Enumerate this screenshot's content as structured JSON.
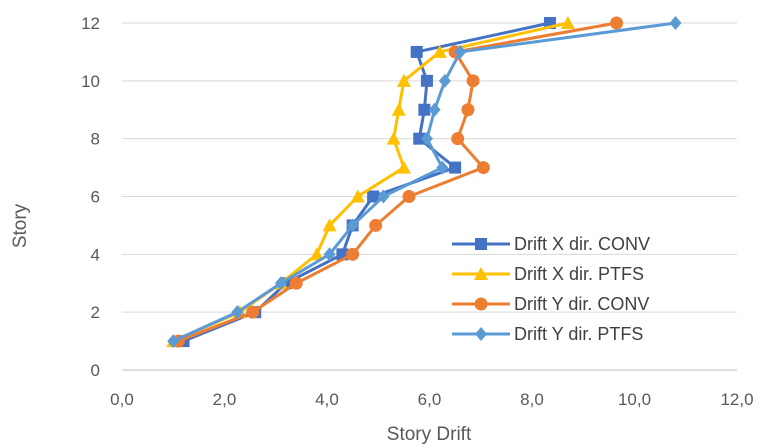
{
  "chart_data": {
    "type": "line",
    "xlabel": "Story Drift",
    "ylabel": "Story",
    "xlim": [
      0,
      12
    ],
    "ylim": [
      0,
      12
    ],
    "x_ticks": [
      0,
      2,
      4,
      6,
      8,
      10,
      12
    ],
    "x_tick_labels": [
      "0,0",
      "2,0",
      "4,0",
      "6,0",
      "8,0",
      "10,0",
      "12,0"
    ],
    "y_ticks": [
      0,
      2,
      4,
      6,
      8,
      10,
      12
    ],
    "y_tick_labels": [
      "0",
      "2",
      "4",
      "6",
      "8",
      "10",
      "12"
    ],
    "grid": "horizontal",
    "legend_position": "bottom-right",
    "series": [
      {
        "name": "Drift X dir. CONV",
        "color": "#4472C4",
        "marker": "square",
        "points": [
          [
            1.2,
            1
          ],
          [
            2.6,
            2
          ],
          [
            3.2,
            3
          ],
          [
            4.3,
            4
          ],
          [
            4.5,
            5
          ],
          [
            4.9,
            6
          ],
          [
            6.5,
            7
          ],
          [
            5.8,
            8
          ],
          [
            5.9,
            9
          ],
          [
            5.95,
            10
          ],
          [
            5.75,
            11
          ],
          [
            8.35,
            12
          ]
        ]
      },
      {
        "name": "Drift X dir. PTFS",
        "color": "#FFC000",
        "marker": "triangle",
        "points": [
          [
            1.0,
            1
          ],
          [
            2.3,
            2
          ],
          [
            3.1,
            3
          ],
          [
            3.8,
            4
          ],
          [
            4.05,
            5
          ],
          [
            4.6,
            6
          ],
          [
            5.5,
            7
          ],
          [
            5.3,
            8
          ],
          [
            5.4,
            9
          ],
          [
            5.5,
            10
          ],
          [
            6.2,
            11
          ],
          [
            8.7,
            12
          ]
        ]
      },
      {
        "name": "Drift Y dir. CONV",
        "color": "#ED7D31",
        "marker": "circle",
        "points": [
          [
            1.1,
            1
          ],
          [
            2.55,
            2
          ],
          [
            3.4,
            3
          ],
          [
            4.5,
            4
          ],
          [
            4.95,
            5
          ],
          [
            5.6,
            6
          ],
          [
            7.05,
            7
          ],
          [
            6.55,
            8
          ],
          [
            6.75,
            9
          ],
          [
            6.85,
            10
          ],
          [
            6.5,
            11
          ],
          [
            9.65,
            12
          ]
        ]
      },
      {
        "name": "Drift Y dir. PTFS",
        "color": "#5B9BD5",
        "marker": "diamond",
        "points": [
          [
            1.0,
            1
          ],
          [
            2.25,
            2
          ],
          [
            3.1,
            3
          ],
          [
            4.05,
            4
          ],
          [
            4.5,
            5
          ],
          [
            5.1,
            6
          ],
          [
            6.25,
            7
          ],
          [
            5.95,
            8
          ],
          [
            6.1,
            9
          ],
          [
            6.3,
            10
          ],
          [
            6.6,
            11
          ],
          [
            10.8,
            12
          ]
        ]
      }
    ]
  }
}
